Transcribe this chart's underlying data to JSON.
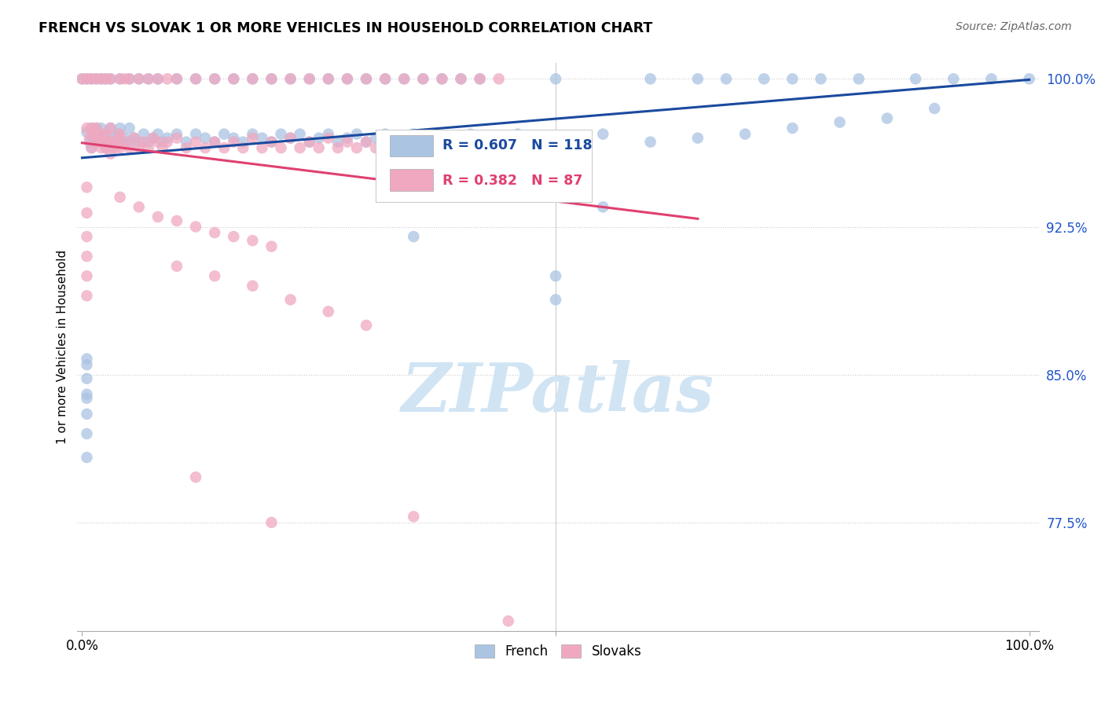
{
  "title": "FRENCH VS SLOVAK 1 OR MORE VEHICLES IN HOUSEHOLD CORRELATION CHART",
  "source": "Source: ZipAtlas.com",
  "ylabel": "1 or more Vehicles in Household",
  "french_R": 0.607,
  "french_N": 118,
  "slovak_R": 0.382,
  "slovak_N": 87,
  "french_color": "#aac4e2",
  "french_edge_color": "#aac4e2",
  "french_line_color": "#1a4a9e",
  "slovak_color": "#f0a8c0",
  "slovak_edge_color": "#f0a8c0",
  "slovak_line_color": "#e04070",
  "legend_text_color_blue": "#1a4a9e",
  "legend_text_color_pink": "#e04070",
  "watermark_color": "#d0e4f4",
  "ytick_vals": [
    0.775,
    0.85,
    0.925,
    1.0
  ],
  "ytick_labels": [
    "77.5%",
    "85.0%",
    "92.5%",
    "100.0%"
  ],
  "xlim": [
    -0.005,
    1.01
  ],
  "ylim": [
    0.72,
    1.008
  ],
  "french_line_x0": 0.0,
  "french_line_y0": 0.935,
  "french_line_x1": 1.0,
  "french_line_y1": 1.0,
  "slovak_line_x0": 0.0,
  "slovak_line_y0": 0.948,
  "slovak_line_x1": 0.65,
  "slovak_line_y1": 0.995
}
